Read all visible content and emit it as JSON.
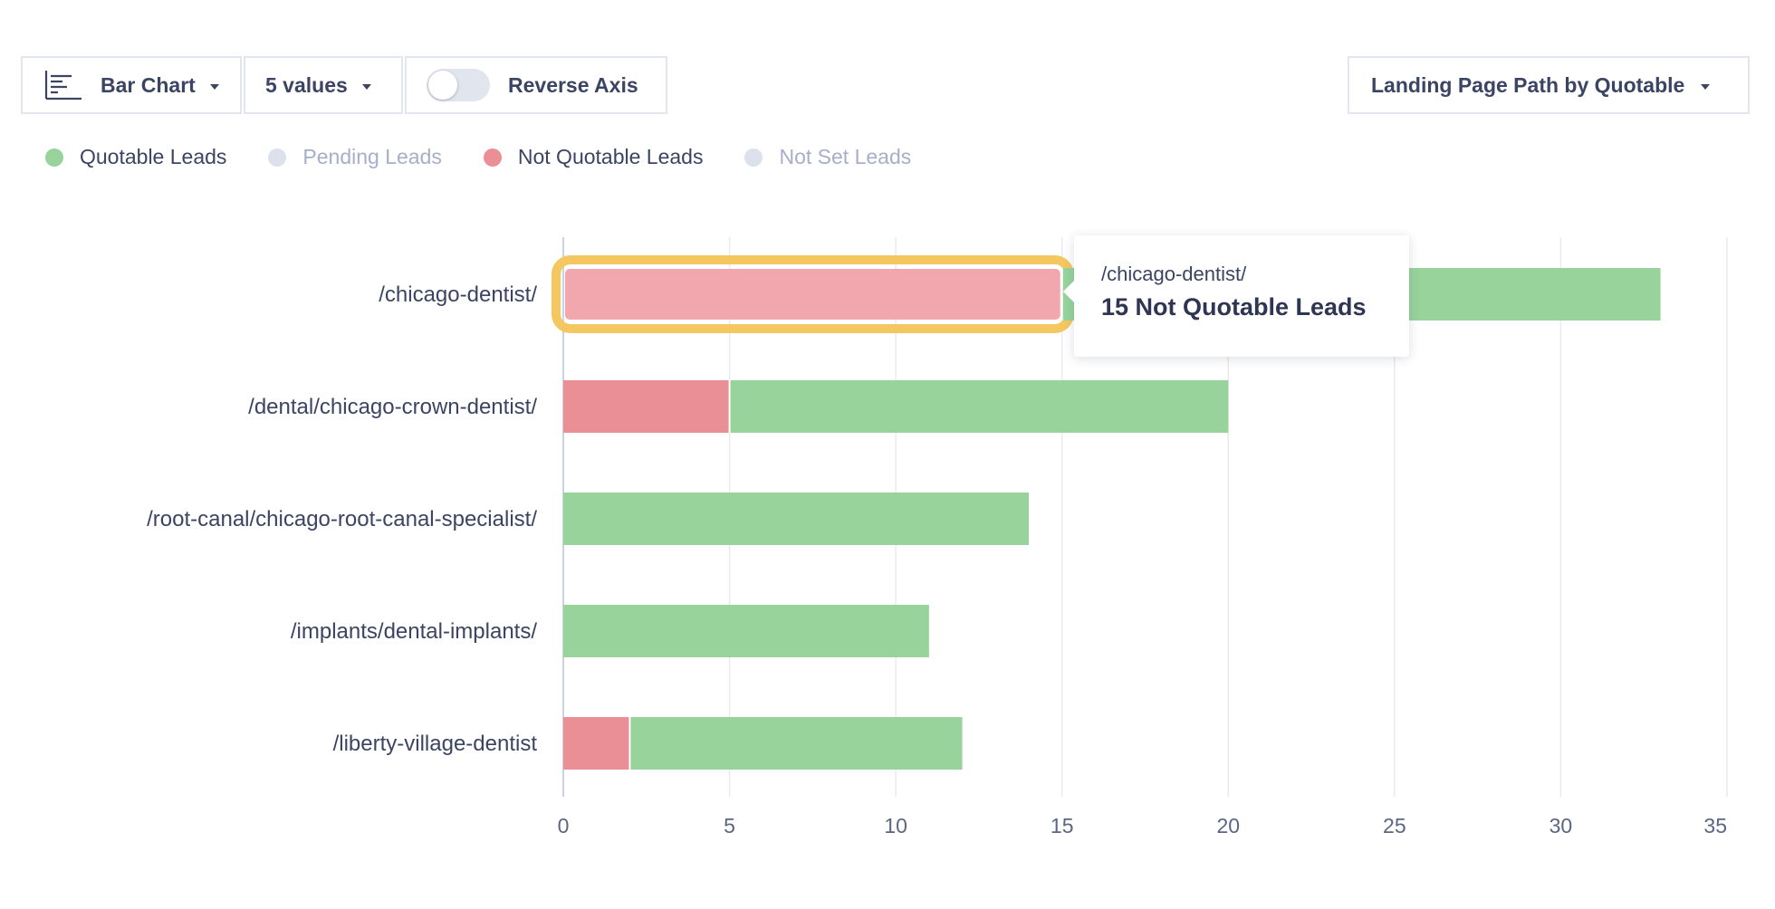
{
  "toolbar": {
    "chart_type_label": "Bar Chart",
    "values_label": "5 values",
    "reverse_axis_label": "Reverse Axis",
    "reverse_axis_on": false,
    "chart_icon": "bar-chart-icon"
  },
  "group_by": {
    "label": "Landing Page Path by Quotable"
  },
  "legend": [
    {
      "label": "Quotable Leads",
      "color": "#98d39c",
      "active": true
    },
    {
      "label": "Pending Leads",
      "color": "#dde1ec",
      "active": false
    },
    {
      "label": "Not Quotable Leads",
      "color": "#ea8f96",
      "active": true
    },
    {
      "label": "Not Set Leads",
      "color": "#dde1ec",
      "active": false
    }
  ],
  "chart_data": {
    "type": "bar",
    "orientation": "horizontal",
    "stacked": true,
    "categories": [
      "/chicago-dentist/",
      "/dental/chicago-crown-dentist/",
      "/root-canal/chicago-root-canal-specialist/",
      "/implants/dental-implants/",
      "/liberty-village-dentist"
    ],
    "series": [
      {
        "name": "Not Quotable Leads",
        "color": "#ea8f96",
        "values": [
          15,
          5,
          0,
          0,
          2
        ]
      },
      {
        "name": "Quotable Leads",
        "color": "#98d39c",
        "values": [
          18,
          15,
          14,
          11,
          10
        ]
      }
    ],
    "xlim": [
      0,
      35
    ],
    "xticks": [
      0,
      5,
      10,
      15,
      20,
      25,
      30,
      35
    ],
    "grid": true,
    "highlighted": {
      "category_index": 0,
      "series_index": 0,
      "highlight_color": "#f5c760",
      "hover_color": "#f2a6ad"
    }
  },
  "tooltip": {
    "title": "/chicago-dentist/",
    "value_text": "15 Not Quotable Leads"
  }
}
